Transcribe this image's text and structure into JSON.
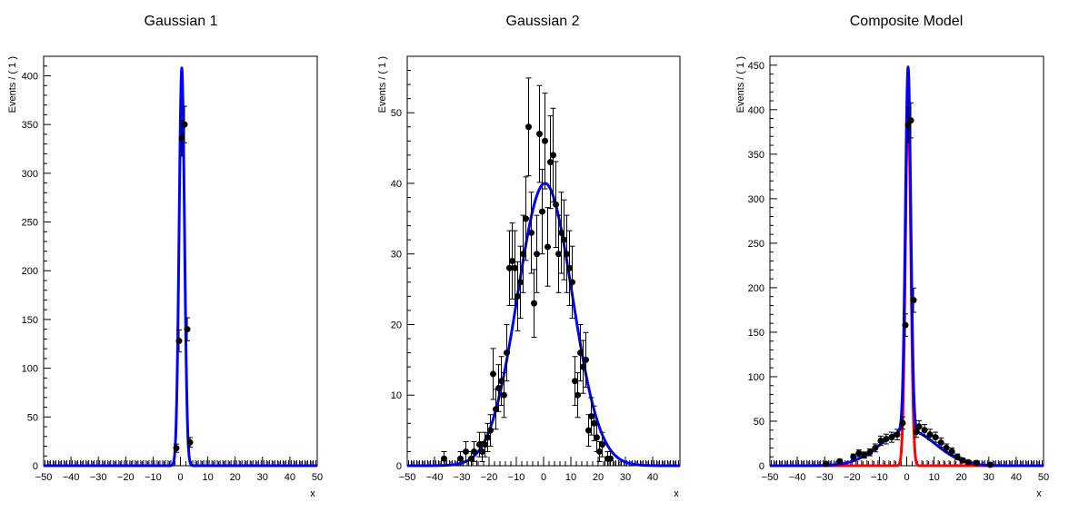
{
  "chart_data": [
    {
      "type": "scatter",
      "title": "Gaussian 1",
      "xlabel": "x",
      "ylabel": "Events / ( 1 )",
      "xlim": [
        -50,
        50
      ],
      "ylim": [
        0,
        420
      ],
      "xticks": [
        "−50",
        "−40",
        "−30",
        "−20",
        "−10",
        "0",
        "10",
        "20",
        "30",
        "40",
        "50"
      ],
      "yticks": [
        "0",
        "50",
        "100",
        "150",
        "200",
        "250",
        "300",
        "350",
        "400"
      ],
      "grid": false,
      "series": [
        {
          "kind": "points",
          "color": "#000000",
          "x": [
            -2,
            -1,
            0,
            1,
            2,
            3
          ],
          "y": [
            18,
            128,
            336,
            350,
            140,
            24
          ]
        },
        {
          "kind": "curve",
          "color": "#0000ff",
          "mean": 0.5,
          "sigma": 0.98,
          "amplitude": 408
        }
      ]
    },
    {
      "type": "scatter",
      "title": "Gaussian 2",
      "xlabel": "x",
      "ylabel": "Events / ( 1 )",
      "xlim": [
        -50,
        50
      ],
      "ylim": [
        0,
        58
      ],
      "xticks": [
        "−50",
        "−40",
        "−30",
        "−20",
        "−10",
        "0",
        "10",
        "20",
        "30",
        "40"
      ],
      "yticks": [
        "0",
        "10",
        "20",
        "30",
        "40",
        "50"
      ],
      "grid": false,
      "series": [
        {
          "kind": "points",
          "color": "#000000",
          "x": [
            -37,
            -31,
            -29,
            -27,
            -26,
            -24,
            -23,
            -22,
            -21,
            -20,
            -19,
            -18,
            -17,
            -16,
            -15,
            -14,
            -13,
            -12,
            -11,
            -10,
            -9,
            -8,
            -7,
            -6,
            -5,
            -4,
            -3,
            -2,
            -1,
            0,
            1,
            2,
            3,
            4,
            5,
            6,
            7,
            8,
            9,
            10,
            11,
            12,
            13,
            14,
            15,
            16,
            17,
            18,
            19,
            20,
            21,
            23,
            24
          ],
          "y": [
            1,
            1,
            2,
            1,
            2,
            3,
            2,
            3,
            4,
            5,
            13,
            8,
            11,
            12,
            10,
            16,
            28,
            29,
            28,
            24,
            26,
            30,
            35,
            48,
            33,
            23,
            30,
            47,
            36,
            46,
            31,
            43,
            44,
            37,
            30,
            33,
            32,
            30,
            28,
            26,
            12,
            10,
            16,
            14,
            15,
            5,
            7,
            6,
            4,
            2,
            3,
            1,
            1
          ]
        },
        {
          "kind": "curve",
          "color": "#0000ff",
          "mean": 0.5,
          "sigma": 10,
          "amplitude": 40
        }
      ]
    },
    {
      "type": "scatter",
      "title": "Composite Model",
      "xlabel": "x",
      "ylabel": "Events / ( 1 )",
      "xlim": [
        -50,
        50
      ],
      "ylim": [
        0,
        460
      ],
      "xticks": [
        "−50",
        "−40",
        "−30",
        "−20",
        "−10",
        "0",
        "10",
        "20",
        "30",
        "40",
        "50"
      ],
      "yticks": [
        "0",
        "50",
        "100",
        "150",
        "200",
        "250",
        "300",
        "350",
        "400",
        "450"
      ],
      "grid": false,
      "series": [
        {
          "kind": "points",
          "color": "#000000",
          "x": [
            -30,
            -25,
            -20,
            -18,
            -16,
            -14,
            -12,
            -10,
            -8,
            -6,
            -4,
            -2,
            -1,
            0,
            1,
            2,
            3,
            4,
            6,
            8,
            10,
            12,
            14,
            16,
            18,
            20,
            22,
            25,
            30
          ],
          "y": [
            2,
            5,
            10,
            14,
            12,
            15,
            20,
            28,
            30,
            32,
            35,
            48,
            158,
            383,
            388,
            186,
            38,
            44,
            40,
            35,
            32,
            26,
            20,
            16,
            10,
            6,
            4,
            3,
            1
          ]
        },
        {
          "kind": "curve",
          "color": "#ff0000",
          "mean": 0.5,
          "sigma": 0.98,
          "amplitude": 408
        },
        {
          "kind": "curve",
          "color": "#0000ff",
          "mean": 0.5,
          "sigma": 10,
          "amplitude": 40,
          "plus_narrow": true
        }
      ]
    }
  ]
}
